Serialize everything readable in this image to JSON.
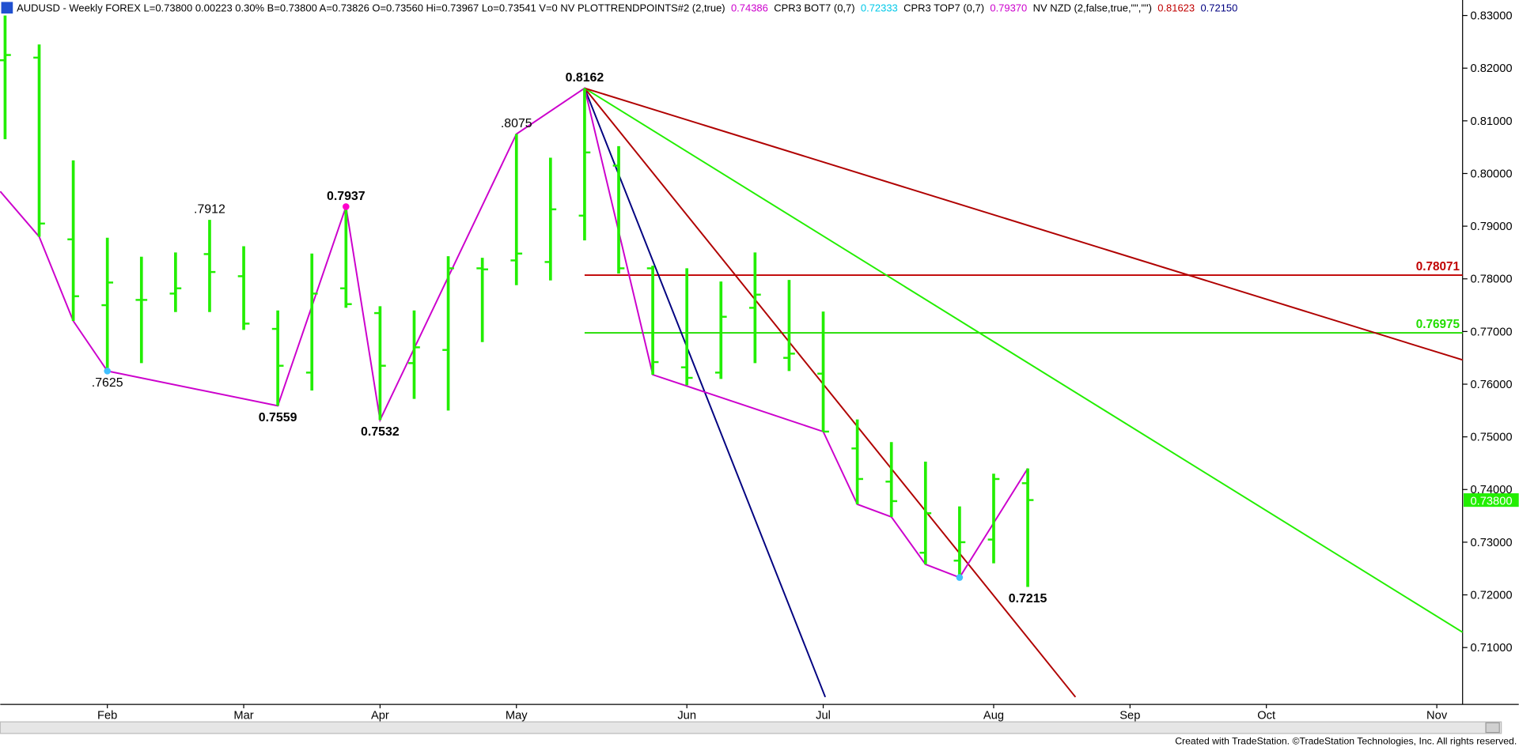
{
  "chart_data": {
    "type": "ohlc",
    "header": [
      {
        "text": "AUDUSD - Weekly FOREX L=0.73800 0.00223 0.30% B=0.73800 A=0.73826 O=0.73560 Hi=0.73967 Lo=0.73541 V=0 NV PLOTTRENDPOINTS#2 (2,true)",
        "color": "#000000"
      },
      {
        "text": "0.74386",
        "color": "#cc00cc"
      },
      {
        "text": "CPR3 BOT7 (0,7)",
        "color": "#000000"
      },
      {
        "text": "0.72333",
        "color": "#00c8e8"
      },
      {
        "text": "CPR3 TOP7 (0,7)",
        "color": "#000000"
      },
      {
        "text": "0.79370",
        "color": "#cc00cc"
      },
      {
        "text": "NV NZD (2,false,true,\"\",\"\")",
        "color": "#000000"
      },
      {
        "text": "0.81623",
        "color": "#c00000"
      },
      {
        "text": "0.72150",
        "color": "#000080"
      }
    ],
    "footer": "Created with TradeStation. ©TradeStation Technologies, Inc. All rights reserved.",
    "categories": [
      null,
      null,
      null,
      "Feb",
      null,
      null,
      null,
      "Mar",
      null,
      null,
      null,
      "Apr",
      null,
      null,
      null,
      "May",
      null,
      null,
      null,
      null,
      "Jun",
      null,
      null,
      null,
      "Jul",
      null,
      null,
      null,
      null,
      "Aug",
      null,
      null,
      null,
      "Sep",
      null,
      null,
      null,
      "Oct",
      null,
      null,
      null,
      null,
      "Nov"
    ],
    "color": "#22ee00",
    "open": [
      0.8215,
      0.822,
      0.7875,
      0.775,
      0.776,
      0.7772,
      0.7847,
      0.7805,
      0.7705,
      0.7622,
      0.7782,
      0.7735,
      0.764,
      0.7665,
      0.782,
      0.7835,
      0.7832,
      0.792,
      0.8015,
      0.782,
      0.7632,
      0.7622,
      0.7745,
      0.765,
      0.762,
      0.7478,
      0.7415,
      0.728,
      0.7265,
      0.7305,
      0.7412,
      null,
      null,
      null,
      null,
      null,
      null,
      null,
      null,
      null,
      null,
      null,
      null
    ],
    "high": [
      0.83,
      0.8245,
      0.8025,
      0.7878,
      0.7842,
      0.785,
      0.7912,
      0.7862,
      0.774,
      0.7848,
      0.7937,
      0.7748,
      0.774,
      0.7843,
      0.784,
      0.8075,
      0.803,
      0.8162,
      0.8052,
      0.7825,
      0.782,
      0.7795,
      0.785,
      0.7798,
      0.7738,
      0.7533,
      0.749,
      0.7453,
      0.7368,
      0.743,
      0.744,
      null,
      null,
      null,
      null,
      null,
      null,
      null,
      null,
      null,
      null,
      null,
      null
    ],
    "low": [
      0.8065,
      0.788,
      0.772,
      0.7625,
      0.764,
      0.7737,
      0.7737,
      0.7703,
      0.7559,
      0.7588,
      0.7745,
      0.7532,
      0.7572,
      0.755,
      0.768,
      0.7788,
      0.7797,
      0.7873,
      0.781,
      0.7618,
      0.7598,
      0.761,
      0.764,
      0.7625,
      0.751,
      0.7372,
      0.7348,
      0.7258,
      0.7233,
      0.726,
      0.7215,
      null,
      null,
      null,
      null,
      null,
      null,
      null,
      null,
      null,
      null,
      null,
      null
    ],
    "close": [
      0.8225,
      0.7905,
      0.7767,
      0.7793,
      0.776,
      0.7782,
      0.7813,
      0.7715,
      0.7635,
      0.7772,
      0.7752,
      0.7635,
      0.767,
      0.782,
      0.7818,
      0.7848,
      0.7932,
      0.804,
      0.782,
      0.7642,
      0.7612,
      0.7728,
      0.777,
      0.7658,
      0.751,
      0.742,
      0.7378,
      0.7355,
      0.73,
      0.742,
      0.738,
      null,
      null,
      null,
      null,
      null,
      null,
      null,
      null,
      null,
      null,
      null,
      null
    ],
    "high_labels": [
      null,
      null,
      null,
      null,
      null,
      null,
      ".7912",
      null,
      null,
      null,
      "0.7937",
      null,
      null,
      null,
      null,
      ".8075",
      null,
      "0.8162",
      null,
      null,
      null,
      null,
      null,
      null,
      null,
      null,
      null,
      null,
      null,
      null,
      null,
      null,
      null,
      null,
      null,
      null,
      null,
      null,
      null,
      null,
      null,
      null,
      null
    ],
    "low_labels": [
      null,
      null,
      null,
      ".7625",
      null,
      null,
      null,
      null,
      "0.7559",
      null,
      null,
      "0.7532",
      null,
      null,
      null,
      null,
      null,
      null,
      null,
      null,
      null,
      null,
      null,
      null,
      null,
      null,
      null,
      null,
      null,
      null,
      "0.7215",
      null,
      null,
      null,
      null,
      null,
      null,
      null,
      null,
      null,
      null,
      null,
      null
    ],
    "zigzag": {
      "color": "#cc00cc",
      "x": [
        -0.142,
        1,
        2,
        3,
        8,
        10,
        11,
        15,
        17,
        19,
        24,
        25,
        26,
        27,
        28,
        30
      ],
      "values": [
        0.7966,
        0.788,
        0.772,
        0.7625,
        0.7559,
        0.7937,
        0.7532,
        0.8075,
        0.8162,
        0.7618,
        0.751,
        0.7372,
        0.7348,
        0.7258,
        0.7233,
        0.744
      ]
    },
    "pivots": [
      {
        "x": 3,
        "value": 0.7625,
        "color": "#40c0ff"
      },
      {
        "x": 10,
        "value": 0.7937,
        "color": "#ff00cc"
      },
      {
        "x": 28,
        "value": 0.7233,
        "color": "#40c0ff"
      }
    ],
    "trendlines": [
      {
        "color": "#000080",
        "x": [
          17,
          24.06
        ],
        "values": [
          0.8162,
          0.7006
        ]
      },
      {
        "color": "#b00000",
        "x": [
          17,
          31.4
        ],
        "values": [
          0.8162,
          0.7006
        ]
      },
      {
        "color": "#22ee00",
        "x": [
          17,
          42.756
        ],
        "values": [
          0.8162,
          0.7129
        ]
      },
      {
        "color": "#b00000",
        "x": [
          17,
          42.756
        ],
        "values": [
          0.8162,
          0.7646
        ]
      }
    ],
    "levels": [
      {
        "value": 0.78071,
        "label": "0.78071",
        "color": "#c00000",
        "start": 17
      },
      {
        "value": 0.76975,
        "label": "0.76975",
        "color": "#22dd00",
        "start": 17
      }
    ],
    "last": {
      "value": 0.738,
      "label": "0.73800",
      "color": "#22ee00"
    },
    "xlim": [
      -0.142,
      42.756
    ],
    "ylim": [
      0.6992,
      0.83294
    ],
    "yticks": [
      {
        "value": 0.71,
        "label": "0.71000"
      },
      {
        "value": 0.72,
        "label": "0.72000"
      },
      {
        "value": 0.73,
        "label": "0.73000"
      },
      {
        "value": 0.74,
        "label": "0.74000"
      },
      {
        "value": 0.75,
        "label": "0.75000"
      },
      {
        "value": 0.76,
        "label": "0.76000"
      },
      {
        "value": 0.77,
        "label": "0.77000"
      },
      {
        "value": 0.78,
        "label": "0.78000"
      },
      {
        "value": 0.79,
        "label": "0.79000"
      },
      {
        "value": 0.8,
        "label": "0.80000"
      },
      {
        "value": 0.81,
        "label": "0.81000"
      },
      {
        "value": 0.82,
        "label": "0.82000"
      },
      {
        "value": 0.83,
        "label": "0.83000"
      }
    ]
  }
}
